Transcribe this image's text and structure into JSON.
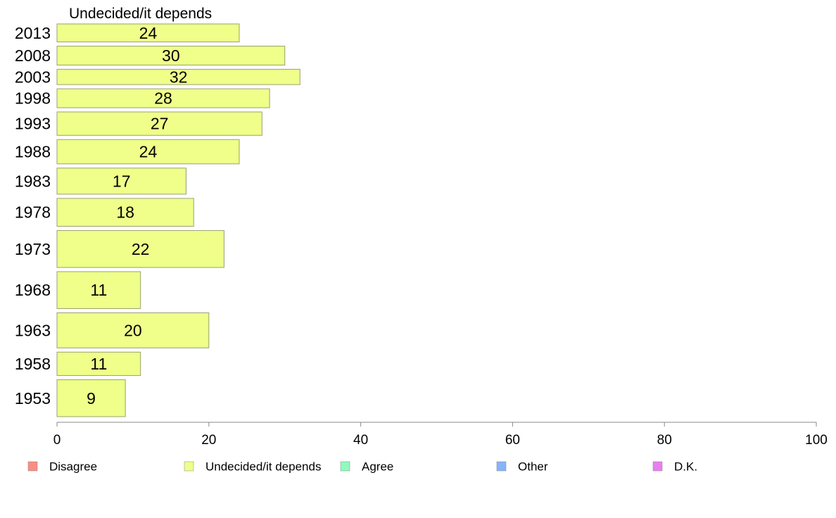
{
  "chart_data": {
    "type": "bar",
    "orientation": "horizontal",
    "panel_title": "Undecided/it depends",
    "categories": [
      "2013",
      "2008",
      "2003",
      "1998",
      "1993",
      "1988",
      "1983",
      "1978",
      "1973",
      "1968",
      "1963",
      "1958",
      "1953"
    ],
    "category_weights": [
      1.0,
      1.05,
      0.85,
      1.05,
      1.3,
      1.35,
      1.45,
      1.55,
      2.05,
      2.05,
      1.95,
      1.3,
      2.05
    ],
    "values": [
      24,
      30,
      32,
      28,
      27,
      24,
      17,
      18,
      22,
      11,
      20,
      11,
      9
    ],
    "series_color": "#efff8a",
    "bar_stroke": "#9aa070",
    "xlim": [
      0,
      100
    ],
    "xticks": [
      0,
      20,
      40,
      60,
      80,
      100
    ],
    "grid": false,
    "legend_position": "bottom",
    "legend": [
      {
        "label": "Disagree",
        "color": "#fb8c82"
      },
      {
        "label": "Undecided/it depends",
        "color": "#efff8a"
      },
      {
        "label": "Agree",
        "color": "#8ffbbd"
      },
      {
        "label": "Other",
        "color": "#85b4fa"
      },
      {
        "label": "D.K.",
        "color": "#e87ef0"
      }
    ]
  }
}
